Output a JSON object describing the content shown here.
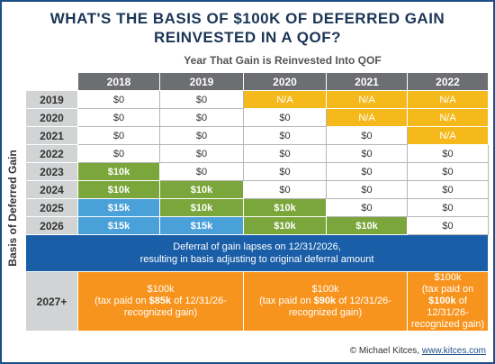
{
  "title": {
    "lines": [
      "WHAT'S THE BASIS OF $100K OF DEFERRED GAIN",
      "REINVESTED IN A QOF?"
    ]
  },
  "subtitle": "Year That Gain is Reinvested Into QOF",
  "y_label": "Basis of Deferred Gain",
  "table": {
    "columns": [
      "2018",
      "2019",
      "2020",
      "2021",
      "2022"
    ],
    "rows": [
      {
        "label": "2019",
        "cells": [
          "$0",
          "$0",
          "N/A",
          "N/A",
          "N/A"
        ]
      },
      {
        "label": "2020",
        "cells": [
          "$0",
          "$0",
          "$0",
          "N/A",
          "N/A"
        ]
      },
      {
        "label": "2021",
        "cells": [
          "$0",
          "$0",
          "$0",
          "$0",
          "N/A"
        ]
      },
      {
        "label": "2022",
        "cells": [
          "$0",
          "$0",
          "$0",
          "$0",
          "$0"
        ]
      },
      {
        "label": "2023",
        "cells": [
          "$10k",
          "$0",
          "$0",
          "$0",
          "$0"
        ]
      },
      {
        "label": "2024",
        "cells": [
          "$10k",
          "$10k",
          "$0",
          "$0",
          "$0"
        ]
      },
      {
        "label": "2025",
        "cells": [
          "$15k",
          "$10k",
          "$10k",
          "$0",
          "$0"
        ]
      },
      {
        "label": "2026",
        "cells": [
          "$15k",
          "$15k",
          "$10k",
          "$10k",
          "$0"
        ]
      }
    ],
    "band": {
      "lines": [
        "Deferral of gain lapses on 12/31/2026,",
        "resulting in basis adjusting to original deferral amount"
      ]
    },
    "final": {
      "label": "2027+",
      "cells": [
        {
          "amount": "$100k",
          "before": "(tax paid on",
          "bold": "$85k",
          "after": "of 12/31/26-recognized gain)"
        },
        {
          "amount": "$100k",
          "before": "(tax paid on",
          "bold": "$90k",
          "after": "of 12/31/26-recognized gain)"
        },
        {
          "amount": "$100k",
          "before": "(tax paid on",
          "bold": "$100k",
          "after": "of 12/31/26-recognized gain)"
        }
      ]
    }
  },
  "footer": {
    "credit": "© Michael Kitces,",
    "link": "www.kitces.com"
  }
}
